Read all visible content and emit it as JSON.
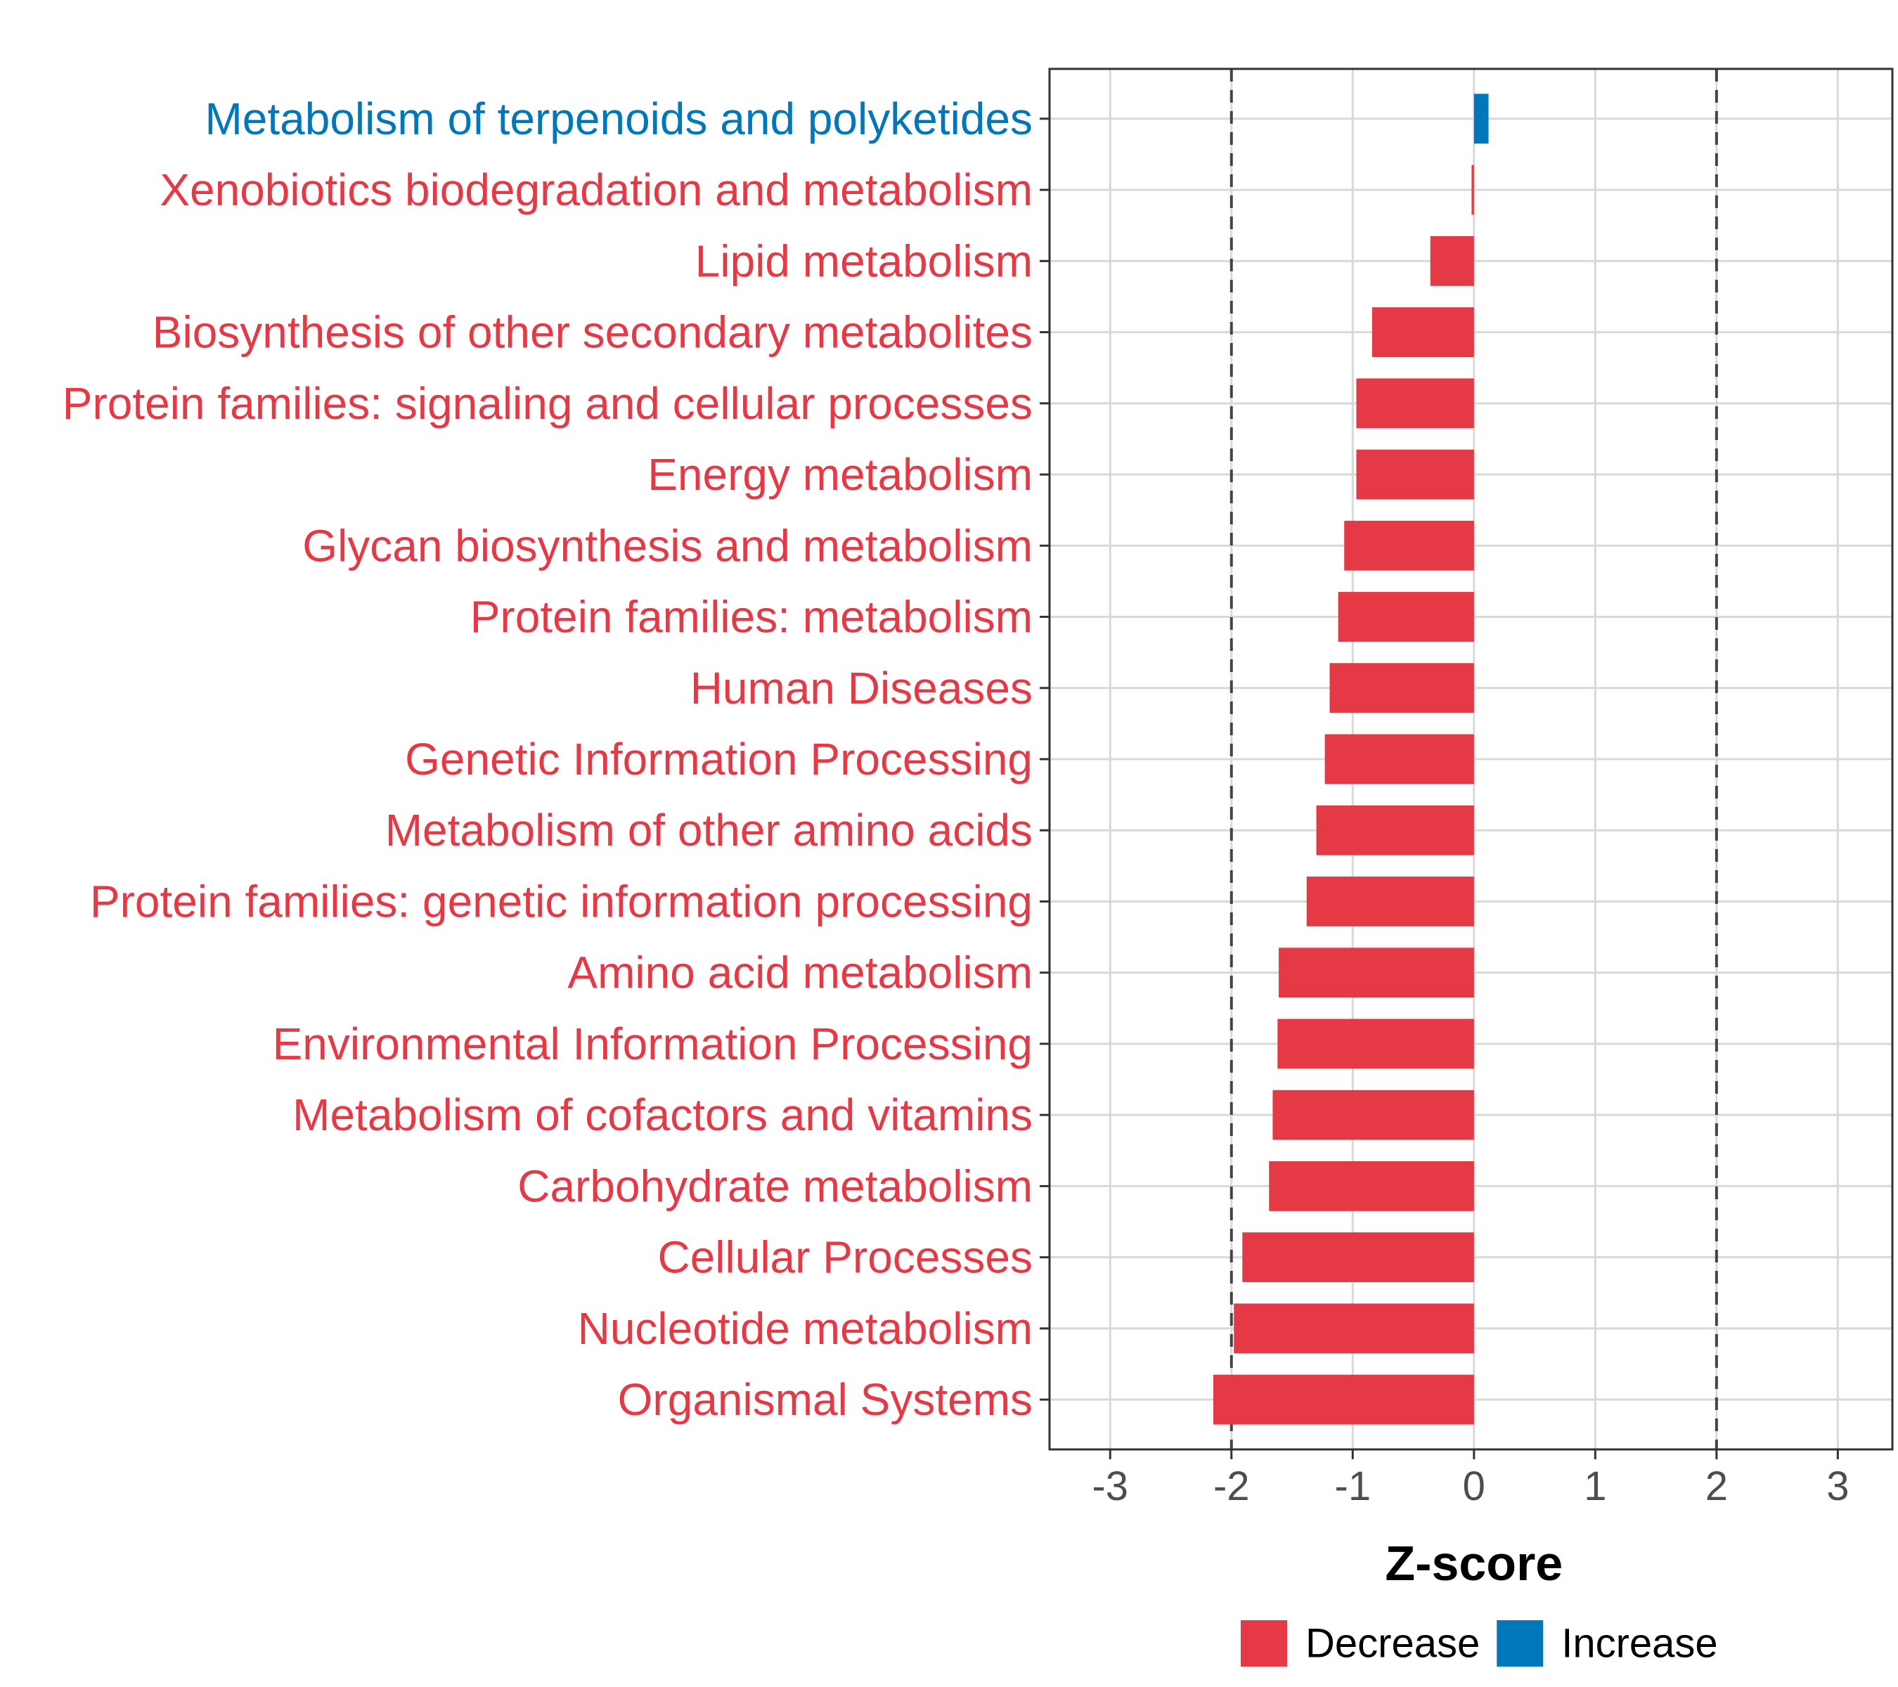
{
  "chart_data": {
    "type": "bar",
    "orientation": "horizontal",
    "title": "",
    "xlabel": "Z-score",
    "ylabel": "",
    "xlim": [
      -3.5,
      3.45
    ],
    "xticks": [
      -3,
      -2,
      -1,
      0,
      1,
      2,
      3
    ],
    "xtick_labels": [
      "-3",
      "-2",
      "-1",
      "0",
      "1",
      "2",
      "3"
    ],
    "reference_lines": [
      -2,
      2
    ],
    "grid": true,
    "categories": [
      "Metabolism of terpenoids and polyketides",
      "Xenobiotics biodegradation and metabolism",
      "Lipid metabolism",
      "Biosynthesis of other secondary metabolites",
      "Protein families: signaling and cellular processes",
      "Energy metabolism",
      "Glycan biosynthesis and metabolism",
      "Protein families: metabolism",
      "Human Diseases",
      "Genetic Information Processing",
      "Metabolism of other amino acids",
      "Protein families: genetic information processing",
      "Amino acid metabolism",
      "Environmental Information Processing",
      "Metabolism of cofactors and vitamins",
      "Carbohydrate metabolism",
      "Cellular Processes",
      "Nucleotide metabolism",
      "Organismal Systems"
    ],
    "values": [
      0.12,
      -0.02,
      -0.36,
      -0.84,
      -0.97,
      -0.97,
      -1.07,
      -1.12,
      -1.19,
      -1.23,
      -1.3,
      -1.38,
      -1.61,
      -1.62,
      -1.66,
      -1.69,
      -1.91,
      -1.98,
      -2.15
    ],
    "groups": [
      "Increase",
      "Decrease",
      "Decrease",
      "Decrease",
      "Decrease",
      "Decrease",
      "Decrease",
      "Decrease",
      "Decrease",
      "Decrease",
      "Decrease",
      "Decrease",
      "Decrease",
      "Decrease",
      "Decrease",
      "Decrease",
      "Decrease",
      "Decrease",
      "Decrease"
    ],
    "legend": {
      "position": "bottom",
      "entries": [
        {
          "name": "Decrease",
          "color": "#E63946"
        },
        {
          "name": "Increase",
          "color": "#0077BB"
        }
      ]
    }
  }
}
